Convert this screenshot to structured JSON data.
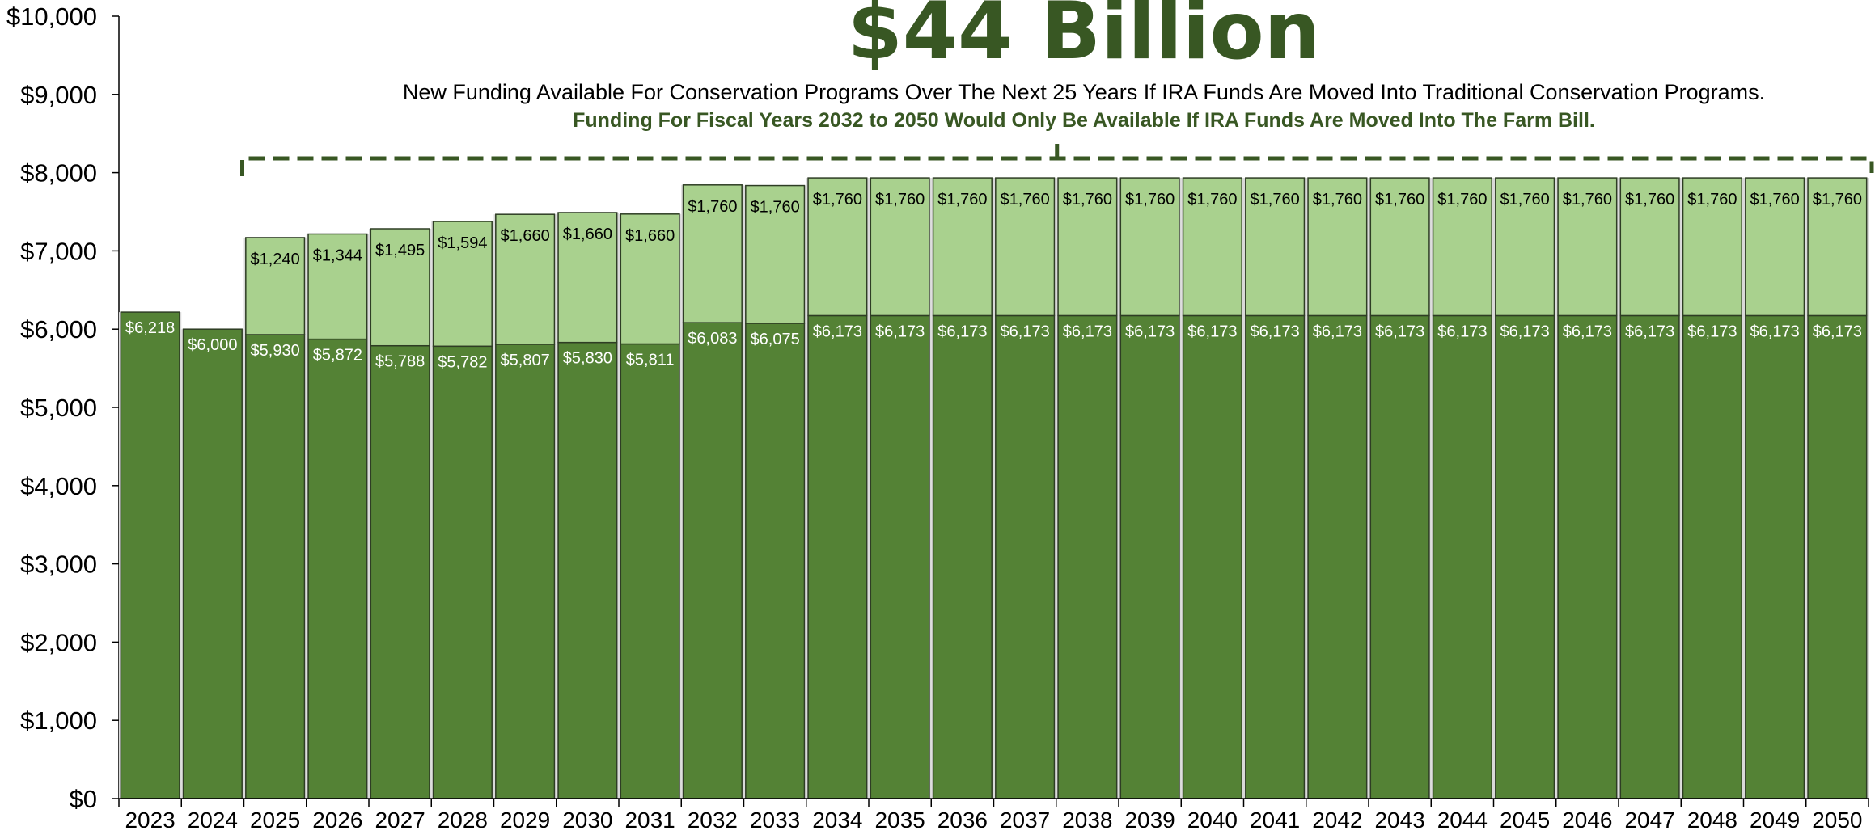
{
  "headline": "$44 Billion",
  "subtitle": "New Funding Available For Conservation Programs Over The Next 25 Years If IRA Funds Are Moved Into Traditional Conservation Programs.",
  "note": "Funding For Fiscal Years 2032 to 2050 Would Only Be Available If IRA Funds Are Moved Into The Farm Bill.",
  "colors": {
    "base": "#548235",
    "ira": "#a9d18e",
    "headline": "#385723",
    "bracket": "#385723",
    "bar_outline": "#2e3d24"
  },
  "chart_data": {
    "type": "bar",
    "stacked": true,
    "title": "$44 Billion",
    "xlabel": "",
    "ylabel": "",
    "ylim": [
      0,
      10000
    ],
    "y_ticks": [
      "$0",
      "$1,000",
      "$2,000",
      "$3,000",
      "$4,000",
      "$5,000",
      "$6,000",
      "$7,000",
      "$8,000",
      "$9,000",
      "$10,000"
    ],
    "grid": false,
    "legend": "none",
    "categories": [
      "2023",
      "2024",
      "2025",
      "2026",
      "2027",
      "2028",
      "2029",
      "2030",
      "2031",
      "2032",
      "2033",
      "2034",
      "2035",
      "2036",
      "2037",
      "2038",
      "2039",
      "2040",
      "2041",
      "2042",
      "2043",
      "2044",
      "2045",
      "2046",
      "2047",
      "2048",
      "2049",
      "2050"
    ],
    "series": [
      {
        "values": [
          6218,
          6000,
          5930,
          5872,
          5788,
          5782,
          5807,
          5830,
          5811,
          6083,
          6075,
          6173,
          6173,
          6173,
          6173,
          6173,
          6173,
          6173,
          6173,
          6173,
          6173,
          6173,
          6173,
          6173,
          6173,
          6173,
          6173,
          6173
        ],
        "labels": [
          "$6,218",
          "$6,000",
          "$5,930",
          "$5,872",
          "$5,788",
          "$5,782",
          "$5,807",
          "$5,830",
          "$5,811",
          "$6,083",
          "$6,075",
          "$6,173",
          "$6,173",
          "$6,173",
          "$6,173",
          "$6,173",
          "$6,173",
          "$6,173",
          "$6,173",
          "$6,173",
          "$6,173",
          "$6,173",
          "$6,173",
          "$6,173",
          "$6,173",
          "$6,173",
          "$6,173",
          "$6,173"
        ]
      },
      {
        "values": [
          0,
          0,
          1240,
          1344,
          1495,
          1594,
          1660,
          1660,
          1660,
          1760,
          1760,
          1760,
          1760,
          1760,
          1760,
          1760,
          1760,
          1760,
          1760,
          1760,
          1760,
          1760,
          1760,
          1760,
          1760,
          1760,
          1760,
          1760
        ],
        "labels": [
          "",
          "",
          "$1,240",
          "$1,344",
          "$1,495",
          "$1,594",
          "$1,660",
          "$1,660",
          "$1,660",
          "$1,760",
          "$1,760",
          "$1,760",
          "$1,760",
          "$1,760",
          "$1,760",
          "$1,760",
          "$1,760",
          "$1,760",
          "$1,760",
          "$1,760",
          "$1,760",
          "$1,760",
          "$1,760",
          "$1,760",
          "$1,760",
          "$1,760",
          "$1,760",
          "$1,760"
        ]
      }
    ]
  }
}
